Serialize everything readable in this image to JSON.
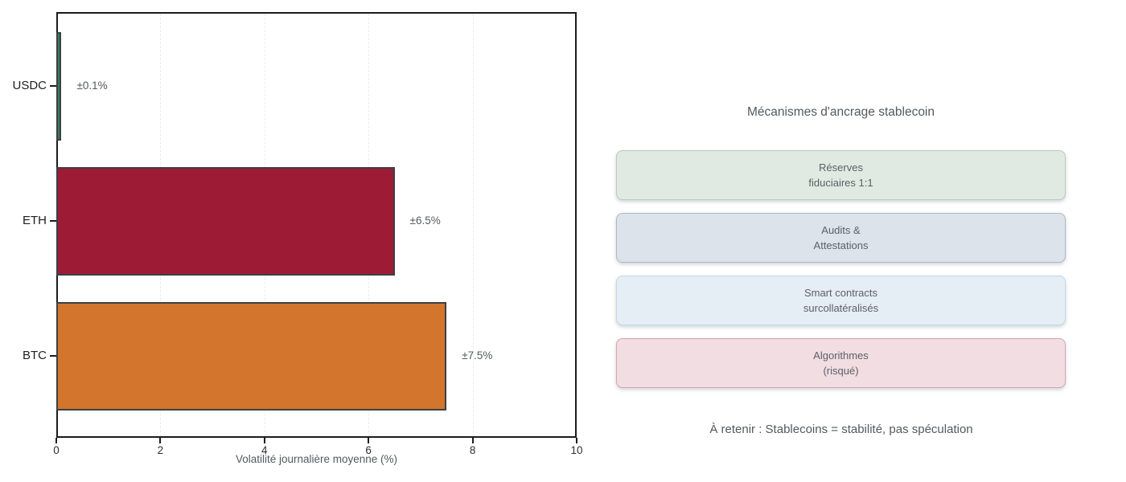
{
  "chart_data": {
    "type": "bar",
    "orientation": "horizontal",
    "xlabel": "Volatilité journalière moyenne (%)",
    "categories": [
      "USDC",
      "ETH",
      "BTC"
    ],
    "values": [
      0.1,
      6.5,
      7.5
    ],
    "bar_labels": [
      "±0.1%",
      "±6.5%",
      "±7.5%"
    ],
    "bar_colors": [
      "#3b7c5c",
      "#9e1b35",
      "#d3752c"
    ],
    "bar_edge_color": "#3a4046",
    "xlim": [
      0,
      10
    ],
    "xticks": [
      0,
      2,
      4,
      6,
      8,
      10
    ],
    "grid": "vertical dashed",
    "legend": "none",
    "title": ""
  },
  "panel": {
    "title": "Mécanismes d'ancrage stablecoin",
    "boxes": [
      {
        "lines": [
          "Réserves",
          "fiduciaires 1:1"
        ],
        "bg": "#e0eae2",
        "border": "#b7cdbb"
      },
      {
        "lines": [
          "Audits &",
          "Attestations"
        ],
        "bg": "#dde3ea",
        "border": "#a9bac9"
      },
      {
        "lines": [
          "Smart contracts",
          "surcollatéralisés"
        ],
        "bg": "#e4eef4",
        "border": "#c2dae5"
      },
      {
        "lines": [
          "Algorithmes",
          "(risqué)"
        ],
        "bg": "#f1dde2",
        "border": "#d8a4b0"
      }
    ],
    "note": "À retenir : Stablecoins = stabilité, pas spéculation"
  }
}
